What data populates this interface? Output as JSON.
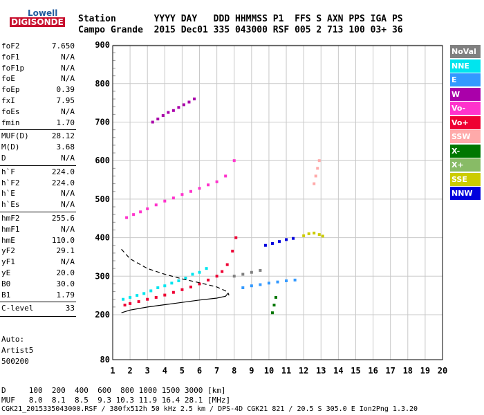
{
  "logo": {
    "line1": "Lowell",
    "line2": "DIGISONDE"
  },
  "header": {
    "row1": "Station       YYYY DAY   DDD HHMMSS P1  FFS S AXN PPS IGA PS",
    "row2": "Campo Grande  2015 Dec01 335 043000 RSF 005 2 713 100 03+ 36"
  },
  "params": [
    {
      "name": "foF2",
      "value": "7.650",
      "group": 0
    },
    {
      "name": "foF1",
      "value": "N/A",
      "group": 0
    },
    {
      "name": "foF1p",
      "value": "N/A",
      "group": 0
    },
    {
      "name": "foE",
      "value": "N/A",
      "group": 0
    },
    {
      "name": "foEp",
      "value": "0.39",
      "group": 0
    },
    {
      "name": "fxI",
      "value": "7.95",
      "group": 0
    },
    {
      "name": "foEs",
      "value": "N/A",
      "group": 0
    },
    {
      "name": "fmin",
      "value": "1.70",
      "group": 0
    },
    {
      "name": "MUF(D)",
      "value": "28.12",
      "group": 1
    },
    {
      "name": "M(D)",
      "value": "3.68",
      "group": 1
    },
    {
      "name": "D",
      "value": "N/A",
      "group": 1
    },
    {
      "name": "h`F",
      "value": "224.0",
      "group": 2
    },
    {
      "name": "h`F2",
      "value": "224.0",
      "group": 2
    },
    {
      "name": "h`E",
      "value": "N/A",
      "group": 2
    },
    {
      "name": "h`Es",
      "value": "N/A",
      "group": 2
    },
    {
      "name": "hmF2",
      "value": "255.6",
      "group": 3
    },
    {
      "name": "hmF1",
      "value": "N/A",
      "group": 3
    },
    {
      "name": "hmE",
      "value": "110.0",
      "group": 3
    },
    {
      "name": "yF2",
      "value": "29.1",
      "group": 3
    },
    {
      "name": "yF1",
      "value": "N/A",
      "group": 3
    },
    {
      "name": "yE",
      "value": "20.0",
      "group": 3
    },
    {
      "name": "B0",
      "value": "30.0",
      "group": 3
    },
    {
      "name": "B1",
      "value": "1.79",
      "group": 3
    },
    {
      "name": "C-level",
      "value": "33",
      "group": 4
    }
  ],
  "auto": {
    "line1": "Auto:",
    "line2": "Artist5",
    "line3": "500200"
  },
  "legend": [
    {
      "label": "NoVal",
      "color": "#808080"
    },
    {
      "label": "NNE",
      "color": "#00e5ee"
    },
    {
      "label": "E",
      "color": "#3399ff"
    },
    {
      "label": "W",
      "color": "#aa00aa"
    },
    {
      "label": "Vo-",
      "color": "#ff33cc"
    },
    {
      "label": "Vo+",
      "color": "#ee0033"
    },
    {
      "label": "SSW",
      "color": "#ffaaaa"
    },
    {
      "label": "X-",
      "color": "#007700"
    },
    {
      "label": "X+",
      "color": "#88bb66"
    },
    {
      "label": "SSE",
      "color": "#cccc00"
    },
    {
      "label": "NNW",
      "color": "#0000dd"
    }
  ],
  "footer": {
    "d_row": "D     100  200  400  600  800 1000 1500 3000 [km]",
    "muf_row": "MUF   8.0  8.1  8.5  9.3 10.3 11.9 16.4 28.1 [MHz]",
    "info_row": "CGK21_2015335043000.RSF / 380fx512h 50 kHz 2.5 km / DPS-4D CGK21 821 / 20.5 S 305.0 E Ion2Png 1.3.20"
  },
  "chart_data": {
    "type": "scatter",
    "x_ticks": [
      "1",
      "2",
      "3",
      "4",
      "5",
      "6",
      "7",
      "8",
      "9",
      "10",
      "11",
      "12",
      "13",
      "14",
      "15",
      "16",
      "17",
      "18",
      "19",
      "20"
    ],
    "y_ticks": [
      "80",
      "200",
      "300",
      "400",
      "500",
      "600",
      "700",
      "800",
      "900"
    ],
    "xlim": [
      1,
      20
    ],
    "ylim": [
      80,
      900
    ],
    "grid": true,
    "legend_position": "right",
    "traces": [
      {
        "name": "Vo+",
        "color": "#ee0033",
        "x": [
          1.7,
          2.0,
          2.5,
          3.0,
          3.5,
          4.0,
          4.5,
          5.0,
          5.5,
          6.0,
          6.5,
          7.0,
          7.3,
          7.6,
          7.9,
          8.1
        ],
        "y": [
          225,
          229,
          234,
          240,
          245,
          251,
          258,
          265,
          272,
          280,
          290,
          300,
          312,
          330,
          365,
          400
        ]
      },
      {
        "name": "Vo-",
        "color": "#ff33cc",
        "x": [
          1.8,
          2.2,
          2.6,
          3.0,
          3.5,
          4.0,
          4.5,
          5.0,
          5.5,
          6.0,
          6.5,
          7.0,
          7.5,
          8.0
        ],
        "y": [
          452,
          460,
          467,
          475,
          485,
          495,
          503,
          512,
          520,
          528,
          537,
          545,
          560,
          600
        ]
      },
      {
        "name": "NNE",
        "color": "#00e5ee",
        "x": [
          1.6,
          2.0,
          2.4,
          2.8,
          3.2,
          3.6,
          4.0,
          4.4,
          4.8,
          5.2,
          5.6,
          6.0,
          6.4
        ],
        "y": [
          240,
          245,
          250,
          255,
          262,
          270,
          275,
          282,
          288,
          295,
          305,
          310,
          320
        ]
      },
      {
        "name": "W",
        "color": "#aa00aa",
        "x": [
          3.3,
          3.6,
          3.9,
          4.2,
          4.5,
          4.8,
          5.1,
          5.4,
          5.7
        ],
        "y": [
          700,
          708,
          717,
          725,
          730,
          738,
          745,
          752,
          760
        ]
      },
      {
        "name": "NNW",
        "color": "#0000dd",
        "x": [
          9.8,
          10.2,
          10.6,
          11.0,
          11.4
        ],
        "y": [
          380,
          385,
          390,
          395,
          398
        ]
      },
      {
        "name": "SSE",
        "color": "#cccc00",
        "x": [
          12.0,
          12.3,
          12.6,
          12.9,
          13.1
        ],
        "y": [
          405,
          410,
          412,
          408,
          404
        ]
      },
      {
        "name": "SSW",
        "color": "#ffaaaa",
        "x": [
          12.6,
          12.7,
          12.8,
          12.9
        ],
        "y": [
          540,
          560,
          580,
          600
        ]
      },
      {
        "name": "X-",
        "color": "#007700",
        "x": [
          10.2,
          10.3,
          10.4
        ],
        "y": [
          205,
          225,
          245
        ]
      },
      {
        "name": "E",
        "color": "#3399ff",
        "x": [
          8.5,
          9.0,
          9.5,
          10.0,
          10.5,
          11.0,
          11.5
        ],
        "y": [
          270,
          275,
          278,
          282,
          285,
          288,
          290
        ]
      },
      {
        "name": "NoVal",
        "color": "#808080",
        "x": [
          8.0,
          8.5,
          9.0,
          9.5
        ],
        "y": [
          300,
          305,
          310,
          315
        ]
      }
    ],
    "profile_solid": {
      "x": [
        1.5,
        2.0,
        3.0,
        4.0,
        5.0,
        6.0,
        7.0,
        7.5,
        7.65
      ],
      "y": [
        205,
        212,
        220,
        226,
        232,
        238,
        243,
        248,
        256
      ]
    },
    "profile_dashed": {
      "x": [
        1.5,
        2.0,
        3.0,
        4.0,
        5.0,
        6.0,
        7.0,
        7.5,
        7.65,
        7.7
      ],
      "y": [
        370,
        345,
        320,
        305,
        293,
        283,
        272,
        262,
        256,
        250
      ]
    }
  }
}
